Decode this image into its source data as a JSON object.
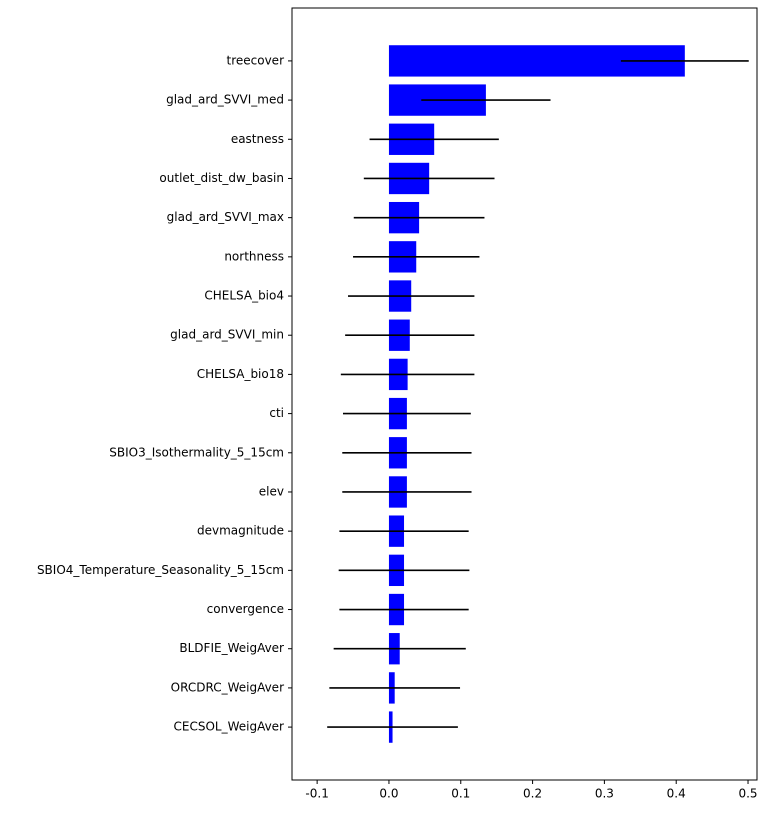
{
  "chart_data": {
    "type": "barh",
    "categories": [
      "treecover",
      "glad_ard_SVVI_med",
      "eastness",
      "outlet_dist_dw_basin",
      "glad_ard_SVVI_max",
      "northness",
      "CHELSA_bio4",
      "glad_ard_SVVI_min",
      "CHELSA_bio18",
      "cti",
      "SBIO3_Isothermality_5_15cm",
      "elev",
      "devmagnitude",
      "SBIO4_Temperature_Seasonality_5_15cm",
      "convergence",
      "BLDFIE_WeigAver",
      "ORCDRC_WeigAver",
      "CECSOL_WeigAver"
    ],
    "values": [
      0.412,
      0.135,
      0.063,
      0.056,
      0.042,
      0.038,
      0.031,
      0.029,
      0.026,
      0.025,
      0.025,
      0.025,
      0.021,
      0.021,
      0.021,
      0.015,
      0.008,
      0.005
    ],
    "errors": [
      0.089,
      0.09,
      0.09,
      0.091,
      0.091,
      0.088,
      0.088,
      0.09,
      0.093,
      0.089,
      0.09,
      0.09,
      0.09,
      0.091,
      0.09,
      0.092,
      0.091,
      0.091
    ],
    "color": "#0000ff",
    "error_color": "#000000",
    "xlim": [
      -0.135,
      0.5125
    ],
    "xticks": [
      -0.1,
      {
        "value": 0,
        "label": "0.0"
      },
      0.1,
      0.2,
      0.3,
      0.4,
      0.5
    ],
    "grid": false
  }
}
